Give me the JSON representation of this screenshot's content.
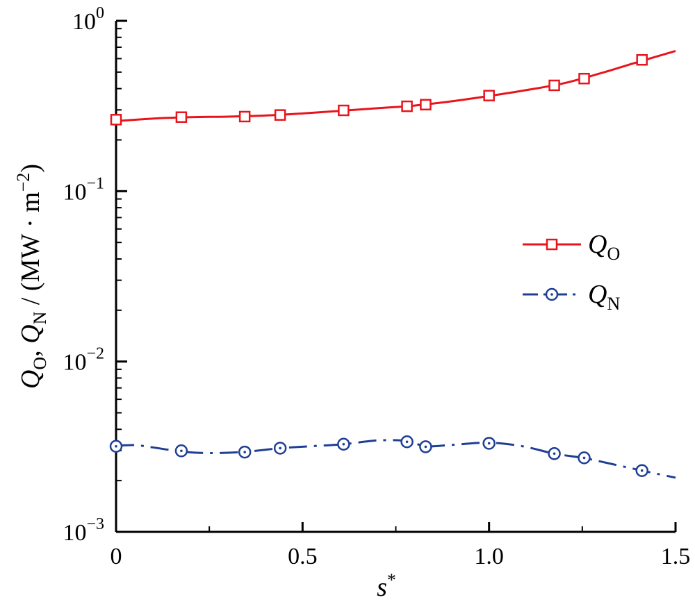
{
  "chart_data": {
    "type": "line",
    "title": "",
    "xlabel": "s*",
    "ylabel": "Q_O, Q_N / (MW·m^−2)",
    "xlim": [
      0,
      1.5
    ],
    "ylim": [
      0.001,
      1
    ],
    "yscale": "log",
    "grid": false,
    "legend_position": "right-middle",
    "x_ticks": [
      "0",
      "0.5",
      "1.0",
      "1.5"
    ],
    "y_ticks": [
      {
        "base": "10",
        "exp": "0"
      },
      {
        "base": "10",
        "exp": "−1"
      },
      {
        "base": "10",
        "exp": "−2"
      },
      {
        "base": "10",
        "exp": "−3"
      }
    ],
    "series": [
      {
        "name": "Q_O",
        "legend_main": "Q",
        "legend_sub": "O",
        "color": "#e8141c",
        "marker": "square",
        "line_style": "solid",
        "x": [
          0,
          0.175,
          0.345,
          0.44,
          0.61,
          0.78,
          0.83,
          1.0,
          1.175,
          1.255,
          1.41
        ],
        "y": [
          0.263,
          0.272,
          0.274,
          0.28,
          0.298,
          0.315,
          0.322,
          0.364,
          0.418,
          0.458,
          0.59
        ],
        "curve_x": [
          0,
          0.1,
          0.2,
          0.3,
          0.4,
          0.5,
          0.6,
          0.7,
          0.8,
          0.9,
          1.0,
          1.1,
          1.2,
          1.3,
          1.4,
          1.5
        ],
        "curve_y": [
          0.258,
          0.267,
          0.272,
          0.274,
          0.278,
          0.286,
          0.296,
          0.307,
          0.318,
          0.337,
          0.362,
          0.392,
          0.43,
          0.493,
          0.574,
          0.665
        ]
      },
      {
        "name": "Q_N",
        "legend_main": "Q",
        "legend_sub": "N",
        "color": "#1f3f94",
        "marker": "circle-dot",
        "line_style": "dash-dot",
        "x": [
          0,
          0.175,
          0.345,
          0.44,
          0.61,
          0.78,
          0.83,
          1.0,
          1.175,
          1.255,
          1.41
        ],
        "y": [
          0.00318,
          0.00299,
          0.00294,
          0.0031,
          0.00327,
          0.00338,
          0.00316,
          0.00331,
          0.00288,
          0.00272,
          0.00229
        ],
        "curve_x": [
          0,
          0.05,
          0.1,
          0.175,
          0.25,
          0.345,
          0.44,
          0.52,
          0.61,
          0.7,
          0.78,
          0.83,
          0.9,
          1.0,
          1.09,
          1.175,
          1.255,
          1.33,
          1.41,
          1.5
        ],
        "curve_y": [
          0.0032,
          0.00323,
          0.00313,
          0.00296,
          0.0029,
          0.00295,
          0.0031,
          0.00318,
          0.00327,
          0.00344,
          0.00342,
          0.00318,
          0.00324,
          0.00334,
          0.00318,
          0.00288,
          0.00271,
          0.0025,
          0.00229,
          0.00208
        ]
      }
    ]
  }
}
